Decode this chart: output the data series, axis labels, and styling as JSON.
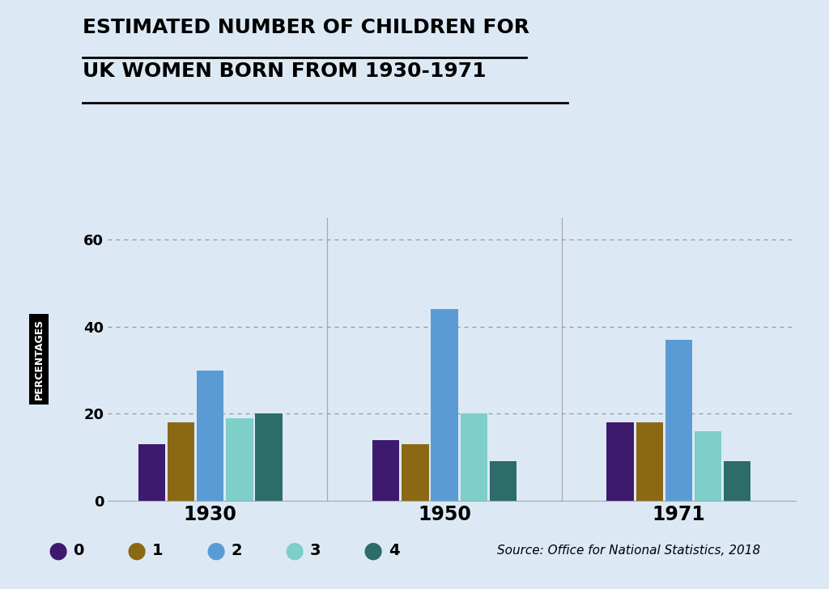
{
  "title_line1": "ESTIMATED NUMBER OF CHILDREN FOR",
  "title_line2": "UK WOMEN BORN FROM 1930-1971",
  "background_color": "#dce9f5",
  "groups": [
    "1930",
    "1950",
    "1971"
  ],
  "categories": [
    "0",
    "1",
    "2",
    "3",
    "4"
  ],
  "values": {
    "1930": [
      13,
      18,
      30,
      19,
      20
    ],
    "1950": [
      14,
      13,
      44,
      20,
      9
    ],
    "1971": [
      18,
      18,
      37,
      16,
      9
    ]
  },
  "bar_colors": [
    "#3d1a6e",
    "#8b6914",
    "#5b9bd5",
    "#7ececa",
    "#2e6b6b"
  ],
  "ylabel": "PERCENTAGES",
  "yticks": [
    0,
    20,
    40,
    60
  ],
  "ylim": [
    0,
    65
  ],
  "source_text": "Source: Office for National Statistics, 2018"
}
